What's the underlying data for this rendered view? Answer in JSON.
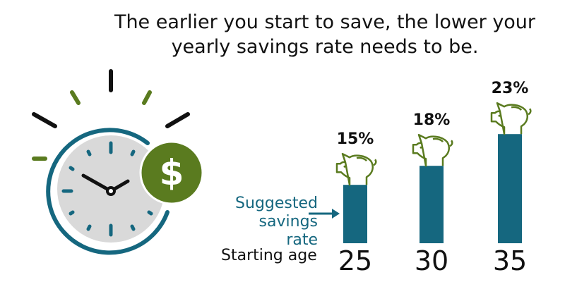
{
  "title": "The earlier you start to save, the lower your yearly savings rate needs to be.",
  "icons": [
    "clock-icon",
    "dollar-coin-icon",
    "piggy-bank-icon"
  ],
  "colors": {
    "bar": "#15677f",
    "green": "#5a7b1f",
    "clock_face": "#d9d9d9",
    "text": "#111111"
  },
  "labels": {
    "suggested_line1": "Suggested",
    "suggested_line2": "savings rate",
    "starting_age": "Starting age"
  },
  "chart_data": {
    "type": "bar",
    "title": "The earlier you start to save, the lower your yearly savings rate needs to be.",
    "xlabel": "Starting age",
    "ylabel": "Suggested savings rate",
    "categories": [
      "25",
      "30",
      "35"
    ],
    "values": [
      15,
      18,
      23
    ],
    "value_labels": [
      "15%",
      "18%",
      "23%"
    ],
    "unit": "%"
  }
}
